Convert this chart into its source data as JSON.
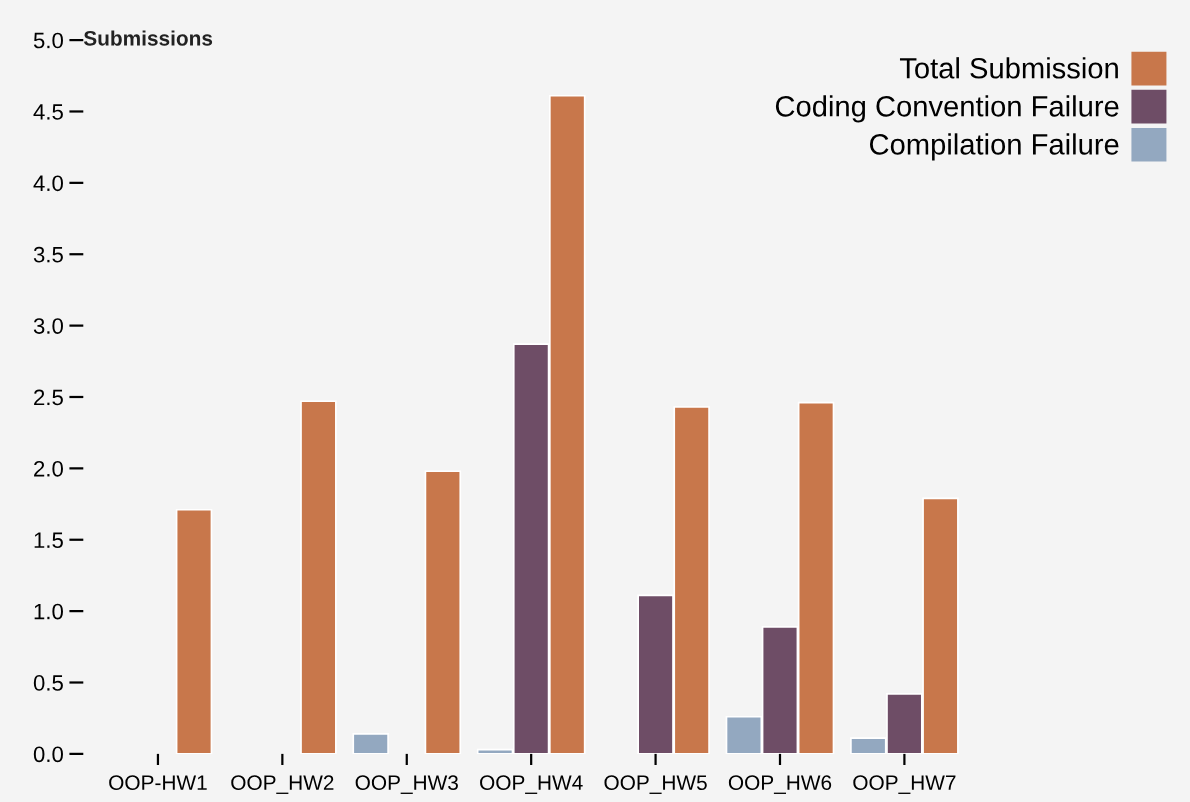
{
  "chart_data": {
    "type": "bar",
    "ylabel": "Submissions",
    "categories": [
      "OOP-HW1",
      "OOP_HW2",
      "OOP_HW3",
      "OOP_HW4",
      "OOP_HW5",
      "OOP_HW6",
      "OOP_HW7"
    ],
    "series": [
      {
        "name": "Total Submission",
        "color": "#c8774b",
        "values": [
          1.71,
          2.47,
          1.98,
          4.61,
          2.43,
          2.46,
          1.79
        ]
      },
      {
        "name": "Coding Convention Failure",
        "color": "#6e4d66",
        "values": [
          null,
          null,
          null,
          2.87,
          1.11,
          0.89,
          0.42
        ]
      },
      {
        "name": "Compilation Failure",
        "color": "#93a8c0",
        "values": [
          null,
          null,
          0.14,
          0.03,
          null,
          0.26,
          0.11
        ]
      }
    ],
    "ylim": [
      0,
      5
    ],
    "yticks": [
      {
        "value": 0,
        "label": "0.0"
      },
      {
        "value": 0.5,
        "label": "0.5"
      },
      {
        "value": 1,
        "label": "1.0"
      },
      {
        "value": 1.5,
        "label": "1.5"
      },
      {
        "value": 2,
        "label": "2.0"
      },
      {
        "value": 2.5,
        "label": "2.5"
      },
      {
        "value": 3,
        "label": "3.0"
      },
      {
        "value": 3.5,
        "label": "3.5"
      },
      {
        "value": 4,
        "label": "4.0"
      },
      {
        "value": 4.5,
        "label": "4.5"
      },
      {
        "value": 5,
        "label": "5.0"
      }
    ],
    "grid": false,
    "legend": "top right"
  }
}
